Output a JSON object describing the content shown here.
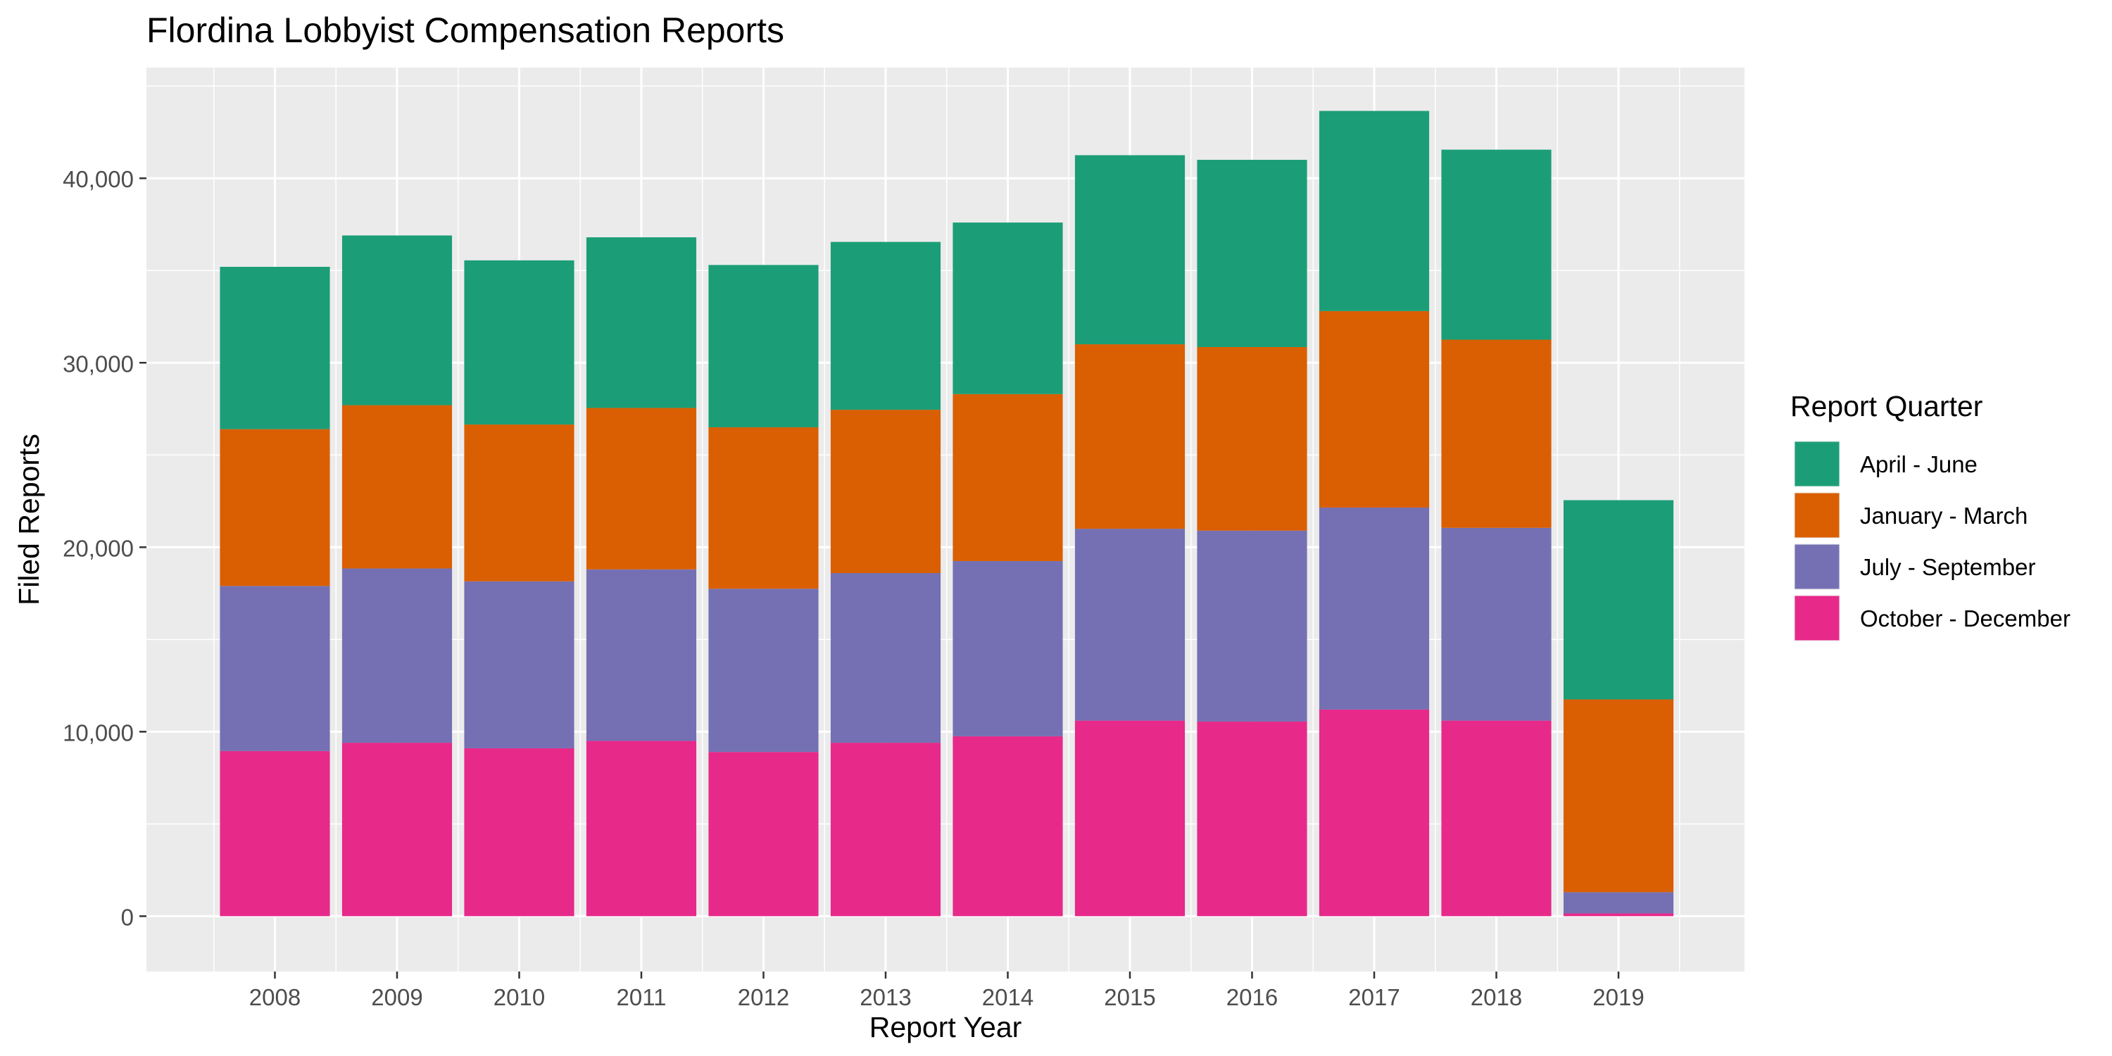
{
  "chart_data": {
    "type": "bar",
    "stacked": true,
    "title": "Flordina Lobbyist Compensation Reports",
    "xlabel": "Report Year",
    "ylabel": "Filed Reports",
    "categories": [
      "2008",
      "2009",
      "2010",
      "2011",
      "2012",
      "2013",
      "2014",
      "2015",
      "2016",
      "2017",
      "2018",
      "2019"
    ],
    "y_ticks": [
      0,
      10000,
      20000,
      30000,
      40000
    ],
    "y_tick_labels": [
      "0",
      "10,000",
      "20,000",
      "30,000",
      "40,000"
    ],
    "ylim": [
      -3000,
      46000
    ],
    "grid": true,
    "legend": {
      "title": "Report Quarter",
      "position": "right",
      "entries": [
        "April - June",
        "January - March",
        "July - September",
        "October - December"
      ]
    },
    "series": [
      {
        "name": "October - December",
        "color": "#E7298A",
        "values": [
          8950,
          9400,
          9100,
          9500,
          8900,
          9400,
          9750,
          10600,
          10550,
          11200,
          10600,
          150
        ]
      },
      {
        "name": "July - September",
        "color": "#7570B3",
        "values": [
          8950,
          9450,
          9050,
          9300,
          8850,
          9200,
          9500,
          10400,
          10350,
          10950,
          10450,
          1150
        ]
      },
      {
        "name": "January - March",
        "color": "#D95F02",
        "values": [
          8500,
          8850,
          8500,
          8750,
          8750,
          8850,
          9050,
          10000,
          9950,
          10650,
          10200,
          10450
        ]
      },
      {
        "name": "April - June",
        "color": "#1B9E77",
        "values": [
          8800,
          9200,
          8900,
          9250,
          8800,
          9100,
          9300,
          10250,
          10150,
          10850,
          10300,
          10800
        ]
      }
    ]
  }
}
